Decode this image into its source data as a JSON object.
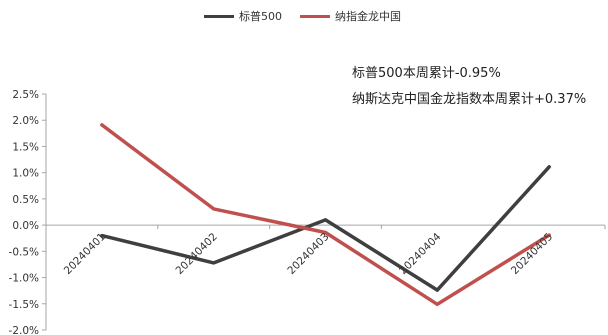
{
  "chart_data": {
    "type": "line",
    "categories": [
      "20240401",
      "20240402",
      "20240403",
      "20240404",
      "20240405"
    ],
    "series": [
      {
        "name": "标普500",
        "color": "#3f3f3f",
        "values": [
          -0.2,
          -0.72,
          0.1,
          -1.24,
          1.11
        ]
      },
      {
        "name": "纳指金龙中国",
        "color": "#c0504d",
        "values": [
          1.91,
          0.31,
          -0.14,
          -1.51,
          -0.19
        ]
      }
    ],
    "ylim": [
      -2.0,
      2.5
    ],
    "yticks": [
      2.5,
      2.0,
      1.5,
      1.0,
      0.5,
      0.0,
      -0.5,
      -1.0,
      -1.5,
      -2.0
    ],
    "ytick_labels": [
      "2.5%",
      "2.0%",
      "1.5%",
      "1.0%",
      "0.5%",
      "0.0%",
      "-0.5%",
      "-1.0%",
      "-1.5%",
      "-2.0%"
    ],
    "legend_position": "top",
    "grid": false,
    "annotations": [
      "标普500本周累计-0.95%",
      "纳斯达克中国金龙指数本周累计+0.37%"
    ]
  }
}
